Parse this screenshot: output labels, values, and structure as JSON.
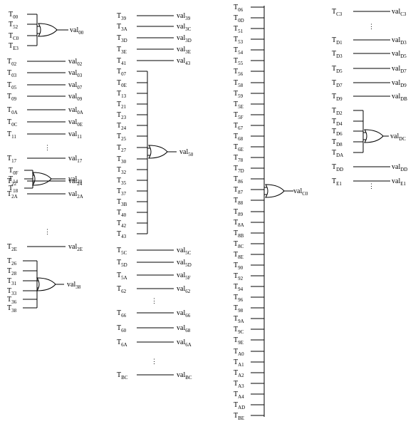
{
  "group1": {
    "gate_val00": {
      "inputs": [
        "00",
        "52",
        "C0",
        "E3"
      ],
      "output": "00"
    },
    "wires": [
      {
        "in": "02",
        "out": "02"
      },
      {
        "in": "03",
        "out": "03"
      },
      {
        "in": "05",
        "out": "07"
      },
      {
        "in": "09",
        "out": "09"
      },
      {
        "in": "0A",
        "out": "0A"
      },
      {
        "in": "0C",
        "out": "0E"
      },
      {
        "in": "11",
        "out": "11"
      },
      {
        "in": "17",
        "out": "17"
      }
    ],
    "gate_val20": {
      "inputs": [
        "0F",
        "14",
        "18"
      ],
      "output": "20"
    },
    "wires2": [
      {
        "in": "22",
        "out": "24"
      },
      {
        "in": "2A",
        "out": "2A"
      },
      {
        "in": "2E",
        "out": "2E"
      }
    ],
    "gate_val38": {
      "inputs": [
        "26",
        "28",
        "31",
        "33",
        "36",
        "38"
      ],
      "output": "38"
    }
  },
  "group2": {
    "wires": [
      {
        "in": "39",
        "out": "39"
      },
      {
        "in": "3A",
        "out": "3C"
      },
      {
        "in": "3D",
        "out": "3D"
      },
      {
        "in": "3E",
        "out": "3E"
      },
      {
        "in": "41",
        "out": "43"
      }
    ],
    "gate_val50": {
      "inputs": [
        "07",
        "0E",
        "13",
        "21",
        "23",
        "24",
        "25",
        "27",
        "30",
        "32",
        "35",
        "37",
        "3B",
        "40",
        "42",
        "43"
      ],
      "output": "50"
    },
    "wires2": [
      {
        "in": "5C",
        "out": "5C"
      },
      {
        "in": "5D",
        "out": "5D"
      },
      {
        "in": "5A",
        "out": "5F"
      },
      {
        "in": "62",
        "out": "62"
      },
      {
        "in": "66",
        "out": "66"
      },
      {
        "in": "60",
        "out": "68"
      },
      {
        "in": "6A",
        "out": "6A"
      },
      {
        "in": "BC",
        "out": "BC"
      }
    ]
  },
  "group3": {
    "gate_valC0": {
      "inputs": [
        "06",
        "0D",
        "51",
        "53",
        "54",
        "55",
        "56",
        "58",
        "59",
        "5E",
        "5F",
        "67",
        "68",
        "6E",
        "78",
        "7D",
        "86",
        "87",
        "88",
        "89",
        "8A",
        "8B",
        "8C",
        "8E",
        "90",
        "92",
        "94",
        "96",
        "98",
        "9A",
        "9C",
        "9E",
        "A0",
        "A1",
        "A2",
        "A3",
        "A4",
        "AD",
        "BE"
      ],
      "output": "C0"
    }
  },
  "group4": {
    "wires": [
      {
        "in": "C3",
        "out": "C3"
      },
      {
        "in": "D1",
        "out": "D3"
      },
      {
        "in": "D3",
        "out": "D5"
      },
      {
        "in": "D5",
        "out": "D7"
      },
      {
        "in": "D7",
        "out": "D9"
      },
      {
        "in": "D9",
        "out": "DB"
      }
    ],
    "gate_valDC": {
      "inputs": [
        "D2",
        "D4",
        "D6",
        "D8",
        "DA"
      ],
      "output": "DC"
    },
    "wires2": [
      {
        "in": "DD",
        "out": "DD"
      },
      {
        "in": "E1",
        "out": "E1"
      }
    ]
  },
  "labels": {
    "input_prefix": "T",
    "output_prefix": "val",
    "ellipsis": "⋮"
  }
}
